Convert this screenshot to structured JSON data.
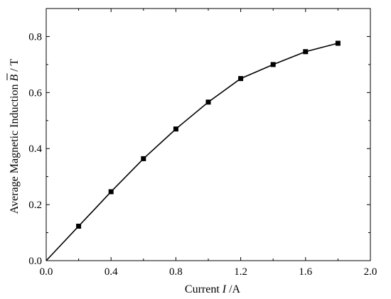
{
  "chart_data": {
    "type": "line",
    "title": "",
    "xlabel": {
      "prefix": "Current ",
      "var": "I",
      "suffix": " /A"
    },
    "ylabel": {
      "prefix": "Average Magnetic Induction ",
      "var": "B",
      "suffix": " / T"
    },
    "xlim": [
      0.0,
      2.0
    ],
    "ylim": [
      0.0,
      0.9
    ],
    "xticks": [
      0.0,
      0.4,
      0.8,
      1.2,
      1.6,
      2.0
    ],
    "xtick_labels": [
      "0.0",
      "0.4",
      "0.8",
      "1.2",
      "1.6",
      "2.0"
    ],
    "yticks": [
      0.0,
      0.2,
      0.4,
      0.6,
      0.8
    ],
    "ytick_labels": [
      "0.0",
      "0.2",
      "0.4",
      "0.6",
      "0.8"
    ],
    "grid": false,
    "legend": "none",
    "series": [
      {
        "x": [
          0.0,
          0.2,
          0.4,
          0.6,
          0.8,
          1.0,
          1.2,
          1.4,
          1.6,
          1.8
        ],
        "y": [
          0.0,
          0.123,
          0.246,
          0.364,
          0.47,
          0.566,
          0.65,
          0.7,
          0.746,
          0.776
        ],
        "marker": "square",
        "color": "#000000"
      }
    ]
  }
}
